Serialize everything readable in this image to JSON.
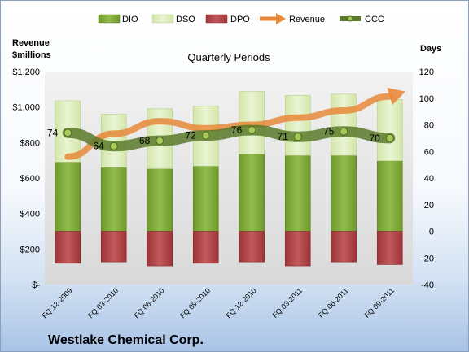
{
  "chart_data": {
    "type": "bar",
    "title": "Quarterly Periods",
    "company": "Westlake Chemical Corp.",
    "left_axis_title": "Revenue\n$millions",
    "right_axis_title": "Days",
    "categories": [
      "FQ 12-2009",
      "FQ 03-2010",
      "FQ 06-2010",
      "FQ 09-2010",
      "FQ 12-2010",
      "FQ 03-2011",
      "FQ 06-2011",
      "FQ 09-2011"
    ],
    "left_ylim": [
      0,
      1200
    ],
    "right_ylim": [
      -40,
      120
    ],
    "left_ticks": [
      "$-",
      "$200",
      "$400",
      "$600",
      "$800",
      "$1,000",
      "$1,200"
    ],
    "right_ticks": [
      "-40",
      "-20",
      "0",
      "20",
      "40",
      "60",
      "80",
      "100",
      "120"
    ],
    "legend_position": "top",
    "series": [
      {
        "name": "DIO",
        "kind": "stacked-bar",
        "axis": "right",
        "color": "#7fa83a",
        "values": [
          52,
          48,
          47,
          49,
          58,
          57,
          57,
          53
        ]
      },
      {
        "name": "DSO",
        "kind": "stacked-bar",
        "axis": "right",
        "color": "#dfeec0",
        "values": [
          46,
          40,
          45,
          45,
          47,
          45,
          46,
          46
        ]
      },
      {
        "name": "DPO",
        "kind": "negative-bar",
        "axis": "right",
        "color": "#b5484a",
        "values": [
          -24,
          -23,
          -26,
          -24,
          -23,
          -26,
          -23,
          -25
        ]
      },
      {
        "name": "Revenue",
        "kind": "arrow-line",
        "axis": "left",
        "color": "#e8883a",
        "values": [
          720,
          850,
          920,
          880,
          900,
          940,
          980,
          1060
        ]
      },
      {
        "name": "CCC",
        "kind": "line",
        "axis": "right",
        "color": "#5a7a2a",
        "values": [
          74,
          64,
          68,
          72,
          76,
          71,
          75,
          70
        ]
      }
    ],
    "data_labels": [
      "74",
      "64",
      "68",
      "72",
      "76",
      "71",
      "75",
      "70"
    ]
  }
}
